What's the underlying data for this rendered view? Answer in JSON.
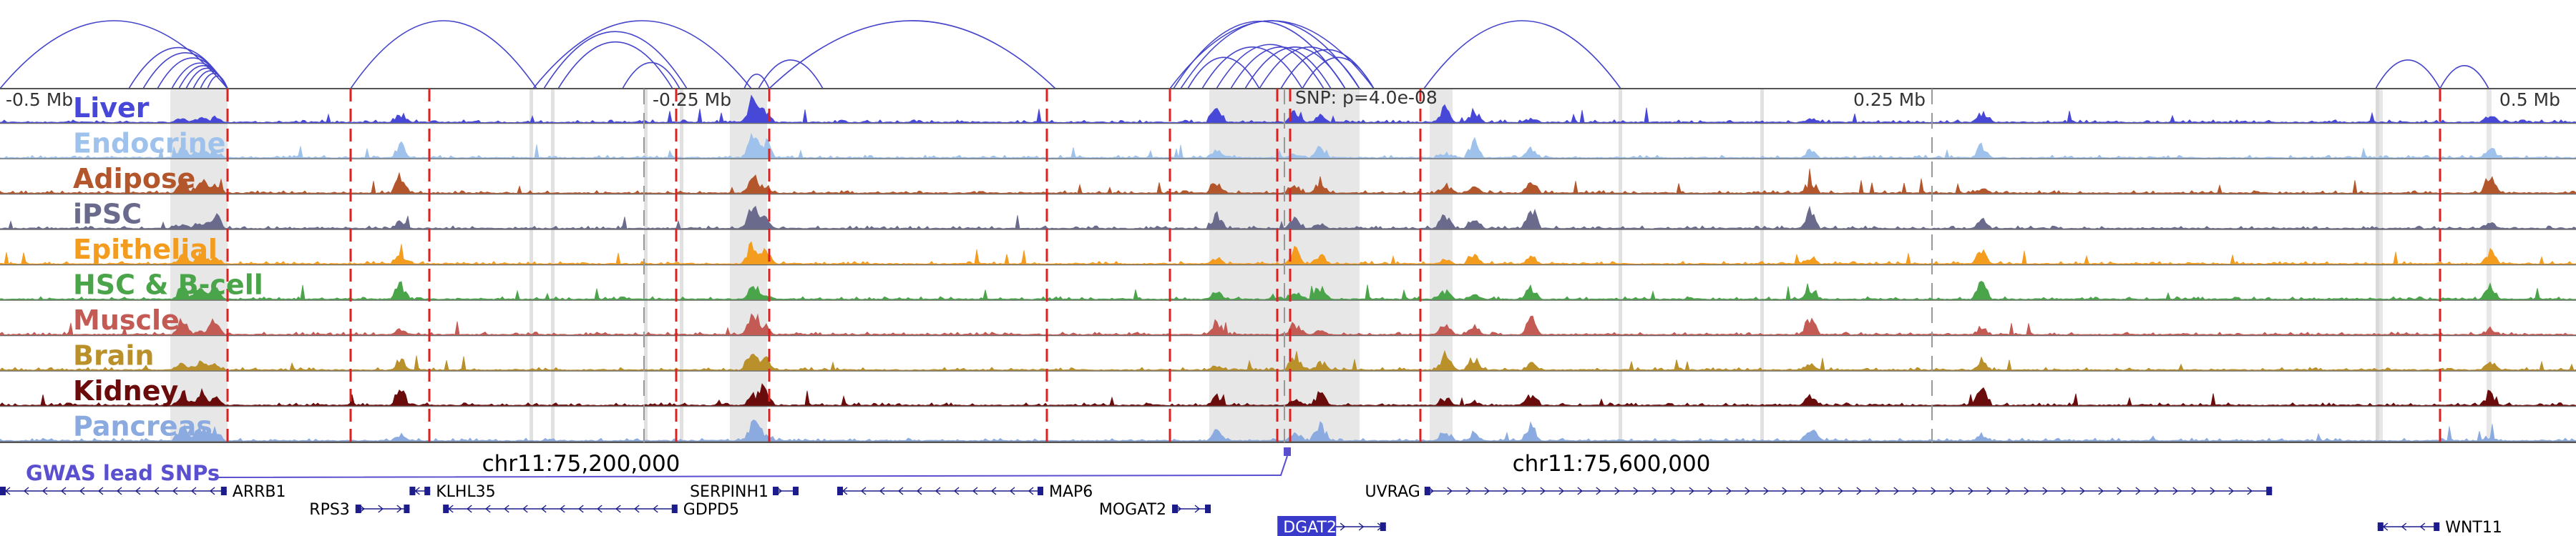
{
  "browser": {
    "tick_labels": [
      {
        "text": "-0.5 Mb",
        "pos": -0.5
      },
      {
        "text": "-0.25 Mb",
        "pos": -0.25
      },
      {
        "text": "0.25 Mb",
        "pos": 0.25
      },
      {
        "text": "0.5 Mb",
        "pos": 0.5
      }
    ],
    "snp_label": "SNP: p=4.0e-08",
    "coordinates": [
      "chr11:75,200,000",
      "chr11:75,600,000"
    ],
    "gwas_label": "GWAS lead SNPs"
  },
  "tracks": [
    {
      "label": "Liver",
      "color": "#4848d8"
    },
    {
      "label": "Endocrine",
      "color": "#9ec2ec"
    },
    {
      "label": "Adipose",
      "color": "#b4562c"
    },
    {
      "label": "iPSC",
      "color": "#6a6a8c"
    },
    {
      "label": "Epithelial",
      "color": "#f39c1e"
    },
    {
      "label": "HSC & B-cell",
      "color": "#4aa54a"
    },
    {
      "label": "Muscle",
      "color": "#c35a54"
    },
    {
      "label": "Brain",
      "color": "#b9902a"
    },
    {
      "label": "Kidney",
      "color": "#6b0c0c"
    },
    {
      "label": "Pancreas",
      "color": "#8aaae0"
    }
  ],
  "genes": [
    {
      "name": "ARRB1",
      "row": 1,
      "start": 0.0,
      "end": 0.088,
      "strand": "-"
    },
    {
      "name": "RPS3",
      "row": 2,
      "start": 0.138,
      "end": 0.159,
      "strand": "+"
    },
    {
      "name": "KLHL35",
      "row": 1,
      "start": 0.159,
      "end": 0.167,
      "strand": "-"
    },
    {
      "name": "GDPD5",
      "row": 2,
      "start": 0.172,
      "end": 0.263,
      "strand": "-"
    },
    {
      "name": "SERPINH1",
      "row": 1,
      "start": 0.3,
      "end": 0.31,
      "strand": "+"
    },
    {
      "name": "MAP6",
      "row": 1,
      "start": 0.325,
      "end": 0.405,
      "strand": "-"
    },
    {
      "name": "MOGAT2",
      "row": 2,
      "start": 0.455,
      "end": 0.47,
      "strand": "+"
    },
    {
      "name": "DGAT2",
      "row": 3,
      "start": 0.497,
      "end": 0.538,
      "strand": "+",
      "highlight": true
    },
    {
      "name": "UVRAG",
      "row": 1,
      "start": 0.553,
      "end": 0.882,
      "strand": "+"
    },
    {
      "name": "WNT11",
      "row": 3,
      "start": 0.923,
      "end": 0.947,
      "strand": "-"
    }
  ],
  "colors": {
    "arc": "#4444cc",
    "dashed_line": "#dd2020",
    "highlight_band": "#d4d4d4",
    "axis": "#555555",
    "gwas": "#5a4fcf",
    "gene": "#1c1c8c",
    "dgat2_highlight": "#3a3aca"
  }
}
